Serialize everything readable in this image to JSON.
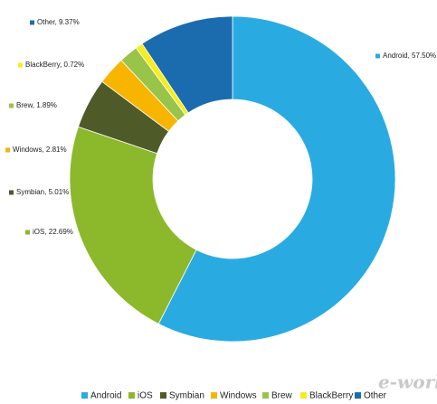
{
  "chart_data": {
    "type": "donut",
    "categories": [
      "Android",
      "iOS",
      "Symbian",
      "Windows",
      "Brew",
      "BlackBerry",
      "Other"
    ],
    "values": [
      57.5,
      22.69,
      5.01,
      2.81,
      1.89,
      0.72,
      9.37
    ],
    "value_labels": [
      "Android, 57.50%",
      "iOS, 22.69%",
      "Symbian, 5.01%",
      "Windows, 2.81%",
      "Brew, 1.89%",
      "BlackBerry, 0.72%",
      "Other, 9.37%"
    ],
    "colors": [
      "#29abe2",
      "#8cb82b",
      "#4f5a29",
      "#f7b500",
      "#99c44a",
      "#f7ec1c",
      "#1b6cae"
    ],
    "legend": "bottom",
    "watermark": "e-works"
  }
}
